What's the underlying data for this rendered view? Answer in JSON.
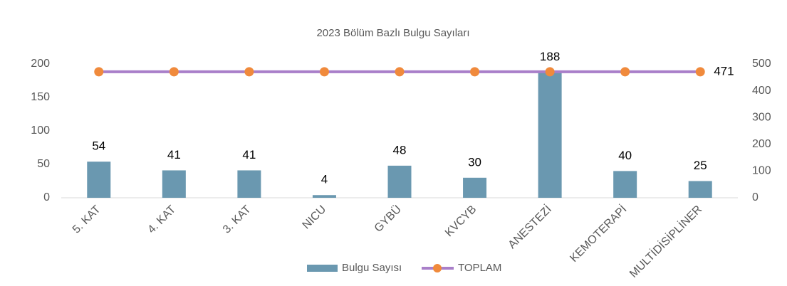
{
  "chart_data": {
    "type": "combo",
    "title": "2023 Bölüm Bazlı Bulgu Sayıları",
    "categories": [
      "5. KAT",
      "4. KAT",
      "3. KAT",
      "NICU",
      "GYBÜ",
      "KVCYB",
      "ANESTEZİ",
      "KEMOTERAPİ",
      "MULTİDİSİPLİNER"
    ],
    "series": [
      {
        "name": "Bulgu Sayısı",
        "type": "bar",
        "color": "#6a98b0",
        "values": [
          54,
          41,
          41,
          4,
          48,
          30,
          188,
          40,
          25
        ]
      },
      {
        "name": "TOPLAM",
        "type": "line",
        "axis": "y2",
        "color": "#a97fc9",
        "marker_color": "#f08a3c",
        "values": [
          471,
          471,
          471,
          471,
          471,
          471,
          471,
          471,
          471
        ]
      }
    ],
    "ylim": [
      0,
      200
    ],
    "yticks": [
      0,
      50,
      100,
      150,
      200
    ],
    "y2lim": [
      0,
      500
    ],
    "y2ticks": [
      0,
      100,
      200,
      300,
      400,
      500
    ],
    "grid": false,
    "legend": "bottom"
  }
}
